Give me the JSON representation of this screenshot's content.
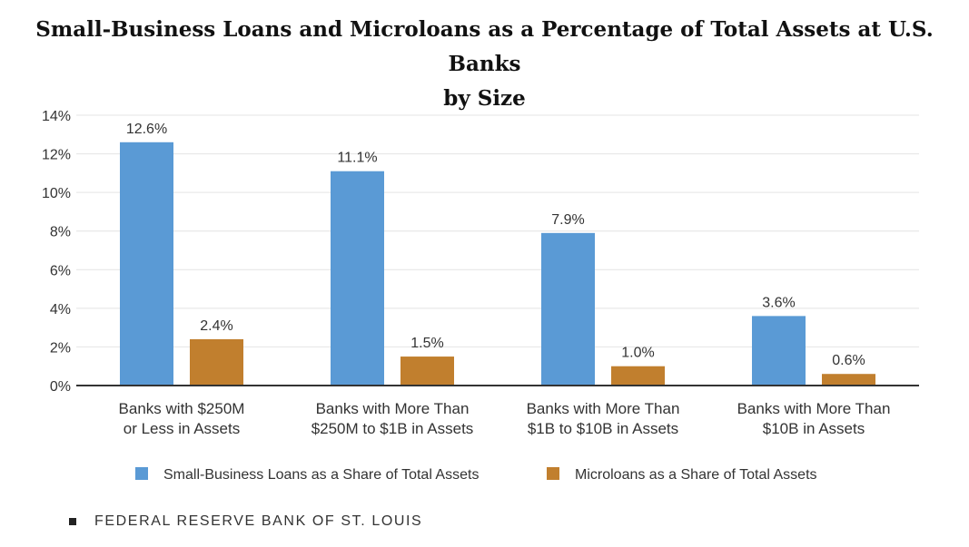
{
  "chart_data": {
    "type": "bar",
    "title": "Small-Business Loans and Microloans as a Percentage of Total Assets at U.S. Banks by Size",
    "title_line1": "Small-Business Loans and Microloans as a Percentage of Total Assets at U.S. Banks",
    "title_line2": "by Size",
    "categories": [
      [
        "Banks with $250M",
        "or Less in Assets"
      ],
      [
        "Banks with More Than",
        "$250M to $1B in Assets"
      ],
      [
        "Banks with More Than",
        "$1B to $10B in Assets"
      ],
      [
        "Banks with More Than",
        "$10B in Assets"
      ]
    ],
    "series": [
      {
        "name": "Small-Business Loans as a Share of Total Assets",
        "values": [
          12.6,
          11.1,
          7.9,
          3.6
        ],
        "labels": [
          "12.6%",
          "11.1%",
          "7.9%",
          "3.6%"
        ],
        "color": "#5a9ad5"
      },
      {
        "name": "Microloans as a Share of Total Assets",
        "values": [
          2.4,
          1.5,
          1.0,
          0.6
        ],
        "labels": [
          "2.4%",
          "1.5%",
          "1.0%",
          "0.6%"
        ],
        "color": "#c17f2e"
      }
    ],
    "ylim": [
      0,
      14
    ],
    "yticks": [
      0,
      2,
      4,
      6,
      8,
      10,
      12,
      14
    ],
    "ytick_labels": [
      "0%",
      "2%",
      "4%",
      "6%",
      "8%",
      "10%",
      "12%",
      "14%"
    ],
    "xlabel": "",
    "ylabel": "",
    "grid": true,
    "legend_position": "bottom"
  },
  "source": "FEDERAL RESERVE BANK OF ST. LOUIS"
}
